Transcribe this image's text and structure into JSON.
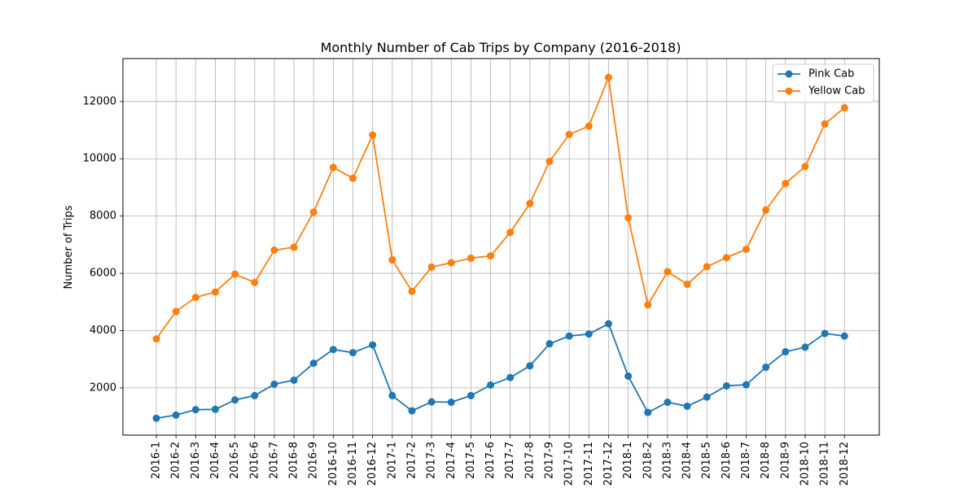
{
  "chart_data": {
    "type": "line",
    "title": "Monthly Number of Cab Trips by Company (2016-2018)",
    "xlabel": "",
    "ylabel": "Number of Trips",
    "ylim": [
      350,
      13500
    ],
    "yticks": [
      2000,
      4000,
      6000,
      8000,
      10000,
      12000
    ],
    "grid": true,
    "legend_position": "top-right",
    "categories": [
      "2016-1",
      "2016-2",
      "2016-3",
      "2016-4",
      "2016-5",
      "2016-6",
      "2016-7",
      "2016-8",
      "2016-9",
      "2016-10",
      "2016-11",
      "2016-12",
      "2017-1",
      "2017-2",
      "2017-3",
      "2017-4",
      "2017-5",
      "2017-6",
      "2017-7",
      "2017-8",
      "2017-9",
      "2017-10",
      "2017-11",
      "2017-12",
      "2018-1",
      "2018-2",
      "2018-3",
      "2018-4",
      "2018-5",
      "2018-6",
      "2018-7",
      "2018-8",
      "2018-9",
      "2018-10",
      "2018-11",
      "2018-12"
    ],
    "series": [
      {
        "name": "Pink Cab",
        "color": "#1f77b4",
        "values": [
          940,
          1050,
          1240,
          1250,
          1580,
          1730,
          2130,
          2270,
          2860,
          3340,
          3230,
          3500,
          1730,
          1200,
          1510,
          1500,
          1730,
          2100,
          2360,
          2770,
          3540,
          3810,
          3880,
          4240,
          2410,
          1140,
          1500,
          1360,
          1680,
          2070,
          2110,
          2720,
          3260,
          3420,
          3900,
          3810
        ]
      },
      {
        "name": "Yellow Cab",
        "color": "#ff7f0e",
        "values": [
          3710,
          4670,
          5160,
          5350,
          5970,
          5680,
          6810,
          6910,
          8140,
          9700,
          9320,
          10830,
          6470,
          5370,
          6220,
          6370,
          6530,
          6610,
          7430,
          8440,
          9910,
          10850,
          11140,
          12840,
          7940,
          4900,
          6060,
          5620,
          6230,
          6550,
          6840,
          8210,
          9140,
          9730,
          11220,
          11780
        ]
      }
    ]
  }
}
